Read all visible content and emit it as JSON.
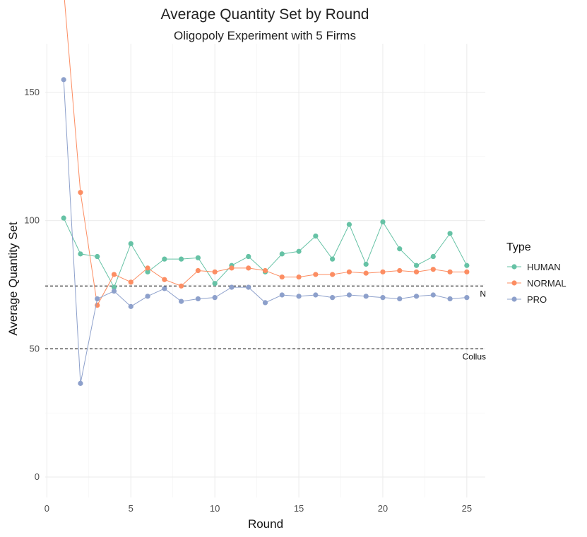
{
  "chart_data": {
    "type": "line",
    "title": "Average Quantity Set by Round",
    "subtitle": "Oligopoly Experiment with 5 Firms",
    "xlabel": "Round",
    "ylabel": "Average Quantity Set",
    "xlim": [
      -0.1,
      26.1
    ],
    "ylim": [
      -8,
      169
    ],
    "x_ticks": [
      0,
      5,
      10,
      15,
      20,
      25
    ],
    "y_ticks": [
      0,
      50,
      100,
      150
    ],
    "grid": true,
    "legend": {
      "title": "Type",
      "position": "right"
    },
    "x": [
      1,
      2,
      3,
      4,
      5,
      6,
      7,
      8,
      9,
      10,
      11,
      12,
      13,
      14,
      15,
      16,
      17,
      18,
      19,
      20,
      21,
      22,
      23,
      24,
      25
    ],
    "series": [
      {
        "name": "HUMAN",
        "color": "#66c2a5",
        "values": [
          101,
          87,
          86,
          74,
          91,
          80,
          85,
          85,
          85.5,
          75.5,
          82.5,
          86,
          80,
          87,
          88,
          94,
          85,
          98.5,
          83,
          99.5,
          89,
          82.5,
          86,
          95,
          82.5
        ]
      },
      {
        "name": "NORMAL",
        "color": "#fc8d62",
        "values": [
          190,
          111,
          67,
          79,
          76,
          81.5,
          77,
          74.5,
          80.5,
          80,
          81.5,
          81.5,
          80.5,
          78,
          78,
          79,
          79,
          80,
          79.5,
          80,
          80.5,
          80,
          81,
          80,
          80
        ]
      },
      {
        "name": "PRO",
        "color": "#8da0cb",
        "values": [
          155,
          36.5,
          69.5,
          72.5,
          66.5,
          70.5,
          73.5,
          68.5,
          69.5,
          70,
          74,
          74,
          68,
          71,
          70.5,
          71,
          70,
          71,
          70.5,
          70,
          69.5,
          70.5,
          71,
          69.5,
          70
        ]
      }
    ],
    "reference_lines": [
      {
        "y": 74.5,
        "label": "N"
      },
      {
        "y": 50,
        "label": "Collus"
      }
    ]
  }
}
